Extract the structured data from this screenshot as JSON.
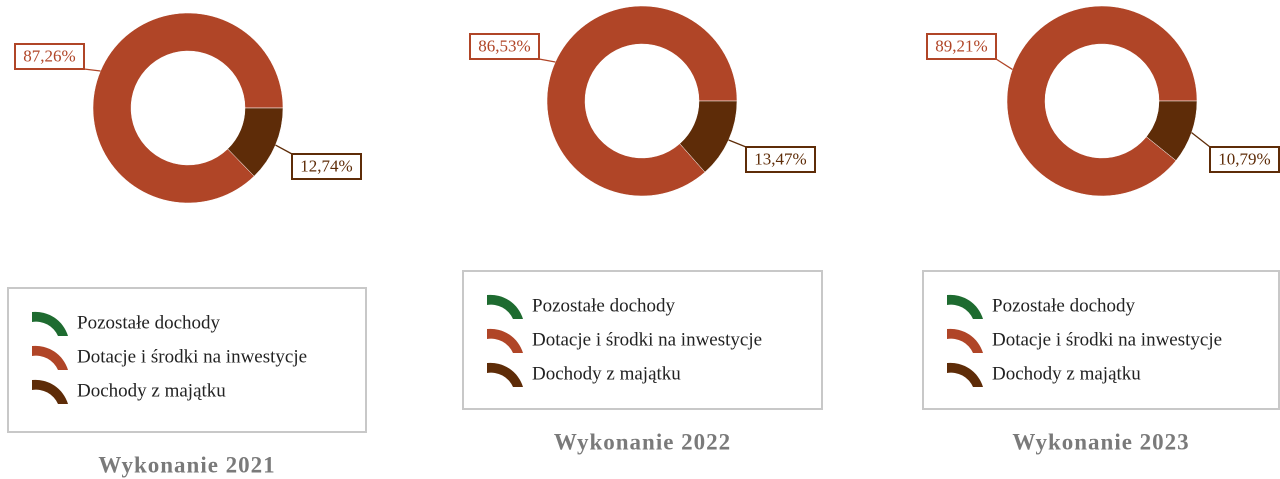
{
  "chart_data": [
    {
      "type": "pie",
      "title": "Wykonanie 2021",
      "categories": [
        "Pozostałe dochody",
        "Dotacje i środki na inwestycje",
        "Dochody z majątku"
      ],
      "colors": [
        "#1e6b30",
        "#b04527",
        "#5e2c08"
      ],
      "values": [
        0,
        87.26,
        12.74
      ],
      "value_labels": [
        null,
        "87,26%",
        "12,74%"
      ]
    },
    {
      "type": "pie",
      "title": "Wykonanie 2022",
      "categories": [
        "Pozostałe dochody",
        "Dotacje i środki na inwestycje",
        "Dochody z majątku"
      ],
      "colors": [
        "#1e6b30",
        "#b04527",
        "#5e2c08"
      ],
      "values": [
        0,
        86.53,
        13.47
      ],
      "value_labels": [
        null,
        "86,53%",
        "13,47%"
      ]
    },
    {
      "type": "pie",
      "title": "Wykonanie 2023",
      "categories": [
        "Pozostałe dochody",
        "Dotacje i środki na inwestycje",
        "Dochody z majątku"
      ],
      "colors": [
        "#1e6b30",
        "#b04527",
        "#5e2c08"
      ],
      "values": [
        0,
        89.21,
        10.79
      ],
      "value_labels": [
        null,
        "89,21%",
        "10,79%"
      ]
    }
  ]
}
